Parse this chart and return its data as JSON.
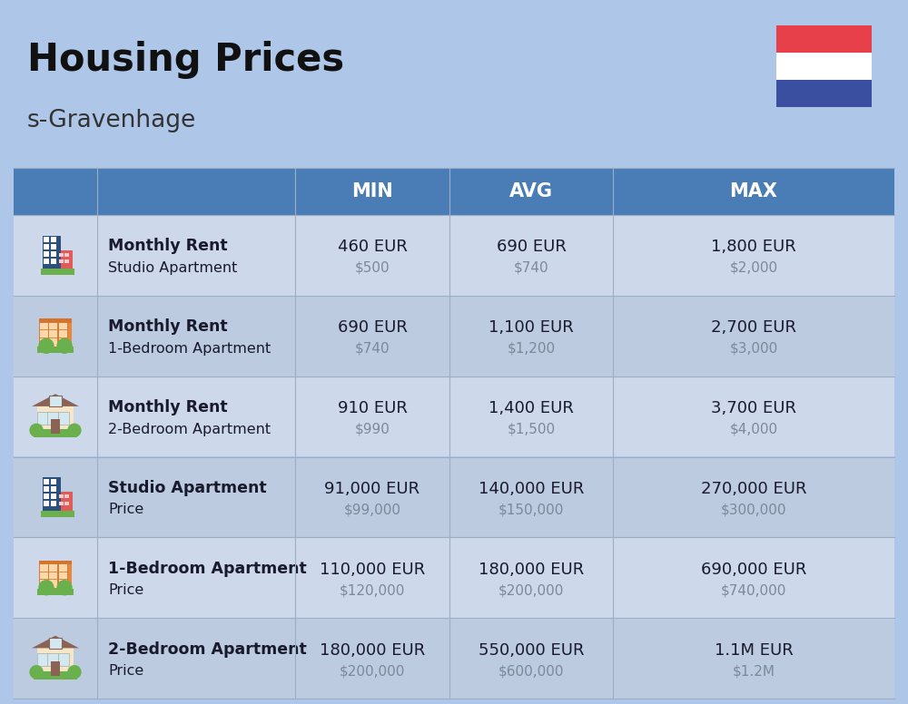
{
  "title": "Housing Prices",
  "subtitle": "s-Gravenhage",
  "bg_color": "#aec6e8",
  "header_bg": "#4a7db5",
  "row_bg_light": "#cdd9ea",
  "row_bg_dark": "#bccbdf",
  "divider_color": "#9aafc5",
  "col_headers": [
    "MIN",
    "AVG",
    "MAX"
  ],
  "rows": [
    {
      "icon": "🏢",
      "label_bold": "Monthly Rent",
      "label_light": "Studio Apartment",
      "min_eur": "460 EUR",
      "min_usd": "$500",
      "avg_eur": "690 EUR",
      "avg_usd": "$740",
      "max_eur": "1,800 EUR",
      "max_usd": "$2,000"
    },
    {
      "icon": "🏠",
      "label_bold": "Monthly Rent",
      "label_light": "1-Bedroom Apartment",
      "min_eur": "690 EUR",
      "min_usd": "$740",
      "avg_eur": "1,100 EUR",
      "avg_usd": "$1,200",
      "max_eur": "2,700 EUR",
      "max_usd": "$3,000"
    },
    {
      "icon": "🏡",
      "label_bold": "Monthly Rent",
      "label_light": "2-Bedroom Apartment",
      "min_eur": "910 EUR",
      "min_usd": "$990",
      "avg_eur": "1,400 EUR",
      "avg_usd": "$1,500",
      "max_eur": "3,700 EUR",
      "max_usd": "$4,000"
    },
    {
      "icon": "🏢",
      "label_bold": "Studio Apartment",
      "label_light": "Price",
      "min_eur": "91,000 EUR",
      "min_usd": "$99,000",
      "avg_eur": "140,000 EUR",
      "avg_usd": "$150,000",
      "max_eur": "270,000 EUR",
      "max_usd": "$300,000"
    },
    {
      "icon": "🏠",
      "label_bold": "1-Bedroom Apartment",
      "label_light": "Price",
      "min_eur": "110,000 EUR",
      "min_usd": "$120,000",
      "avg_eur": "180,000 EUR",
      "avg_usd": "$200,000",
      "max_eur": "690,000 EUR",
      "max_usd": "$740,000"
    },
    {
      "icon": "🏡",
      "label_bold": "2-Bedroom Apartment",
      "label_light": "Price",
      "min_eur": "180,000 EUR",
      "min_usd": "$200,000",
      "avg_eur": "550,000 EUR",
      "avg_usd": "$600,000",
      "max_eur": "1.1M EUR",
      "max_usd": "$1.2M"
    }
  ],
  "flag_colors": [
    "#e8404a",
    "#ffffff",
    "#3b4fa0"
  ],
  "text_dark": "#1a1a2e",
  "text_gray": "#7a8a99",
  "title_color": "#111111",
  "subtitle_color": "#333333"
}
